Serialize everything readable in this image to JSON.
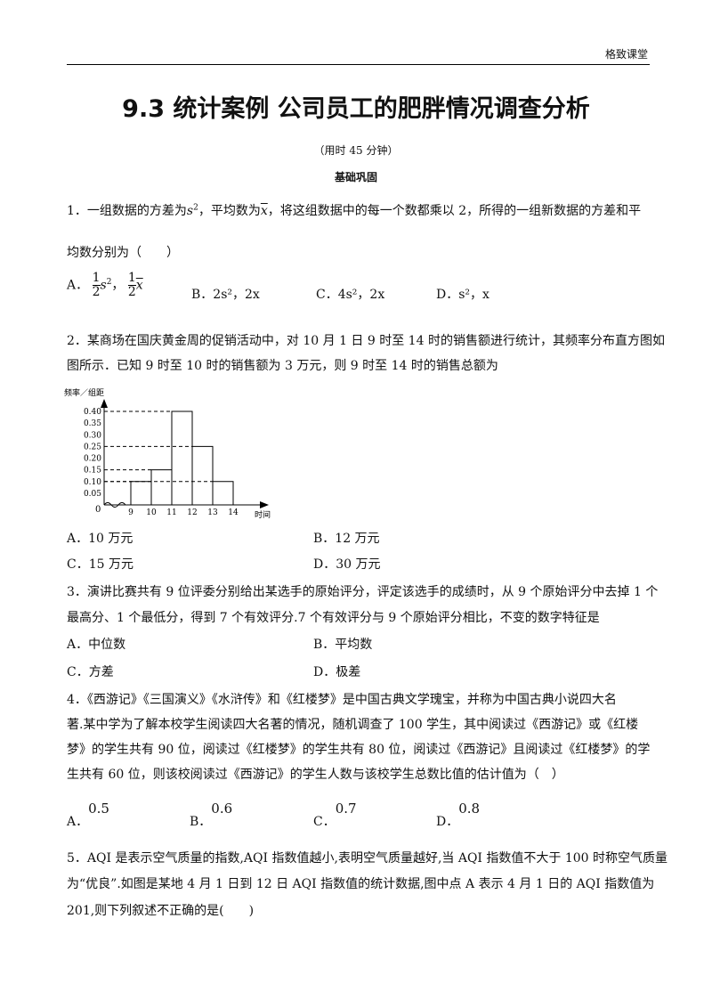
{
  "header": {
    "brand": "格致课堂",
    "title": "9.3  统计案例    公司员工的肥胖情况调查分析",
    "duration": "（用时 45 分钟）",
    "section": "基础巩固"
  },
  "q1": {
    "pre": "1．一组数据的方差为",
    "mid": "，平均数为",
    "post": "，将这组数据中的每一个数都乘以 2，所得的一组新数据的方差和平",
    "line2": "均数分别为（　　）",
    "opts": {
      "A": "A．",
      "B": "B．2s²，2x",
      "C": "C．4s²，2x",
      "D": "D．s²，x"
    }
  },
  "q2": {
    "line1": "2．某商场在国庆黄金周的促销活动中，对 10 月 1 日 9 时至 14 时的销售额进行统计，其频率分布直方图如",
    "line2": "图所示．已知 9 时至 10 时的销售额为 3 万元，则 9 时至 14 时的销售总额为",
    "opts": [
      "A．10 万元",
      "B．12 万元",
      "C．15 万元",
      "D．30 万元"
    ]
  },
  "chart_data": {
    "type": "bar",
    "ylabel": "频率／组距",
    "xlabel": "时间",
    "x_ticks": [
      "9",
      "10",
      "11",
      "12",
      "13",
      "14"
    ],
    "bins": [
      [
        9,
        10
      ],
      [
        10,
        11
      ],
      [
        11,
        12
      ],
      [
        12,
        13
      ],
      [
        13,
        14
      ]
    ],
    "values": [
      0.1,
      0.15,
      0.4,
      0.25,
      0.1
    ],
    "y_ticks": [
      "0.05",
      "0.10",
      "0.15",
      "0.20",
      "0.25",
      "0.30",
      "0.35",
      "0.40"
    ],
    "origin_label": "0",
    "ylim": [
      0,
      0.4
    ]
  },
  "q3": {
    "line1": "3．演讲比赛共有 9 位评委分别给出某选手的原始评分，评定该选手的成绩时，从 9 个原始评分中去掉 1 个",
    "line2": "最高分、1 个最低分，得到 7 个有效评分.7 个有效评分与 9 个原始评分相比，不变的数字特征是",
    "opts": [
      "A．中位数",
      "B．平均数",
      "C．方差",
      "D．极差"
    ]
  },
  "q4": {
    "lines": [
      "4．《西游记》《三国演义》《水浒传》和《红楼梦》是中国古典文学瑰宝，并称为中国古典小说四大名",
      "著.某中学为了解本校学生阅读四大名著的情况，随机调查了 100 学生，其中阅读过《西游记》或《红楼",
      "梦》的学生共有 90 位，阅读过《红楼梦》的学生共有 80 位，阅读过《西游记》且阅读过《红楼梦》的学",
      "生共有 60 位，则该校阅读过《西游记》的学生人数与该校学生总数比值的估计值为（　）"
    ],
    "opts": [
      {
        "label": "A．",
        "value": "0.5"
      },
      {
        "label": "B．",
        "value": "0.6"
      },
      {
        "label": "C．",
        "value": "0.7"
      },
      {
        "label": "D．",
        "value": "0.8"
      }
    ]
  },
  "q5": {
    "lines": [
      "5．AQI 是表示空气质量的指数,AQI 指数值越小,表明空气质量越好,当 AQI 指数值不大于 100 时称空气质量",
      "为“优良”.如图是某地 4 月 1 日到 12 日 AQI 指数值的统计数据,图中点 A 表示 4 月 1 日的 AQI 指数值为",
      "201,则下列叙述不正确的是(　　)"
    ]
  }
}
